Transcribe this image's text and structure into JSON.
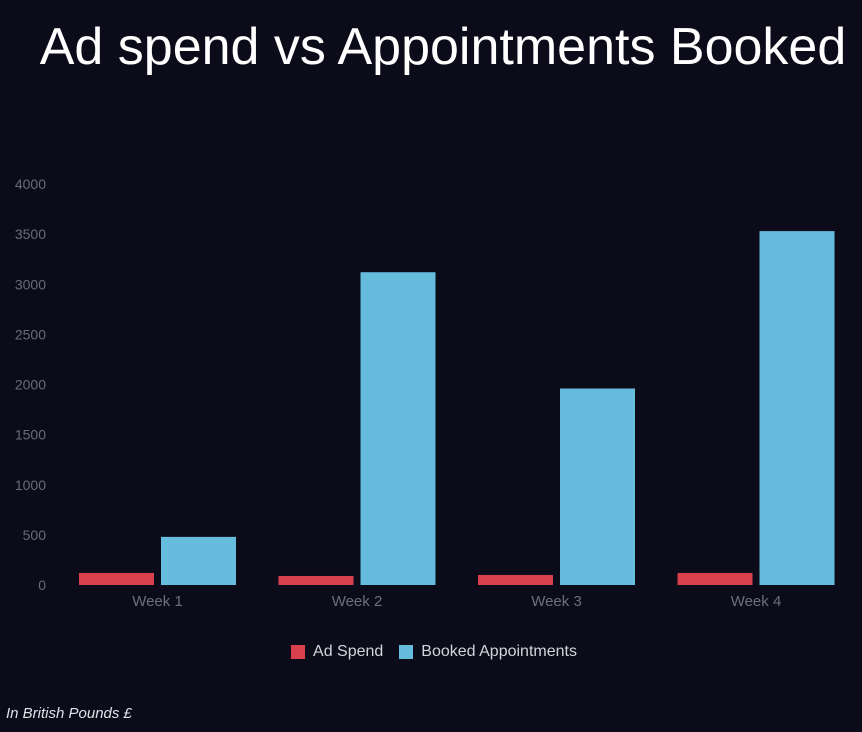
{
  "chart_data": {
    "type": "bar",
    "title": "Ad spend vs Appointments Booked",
    "categories": [
      "Week 1",
      "Week 2",
      "Week 3",
      "Week 4"
    ],
    "series": [
      {
        "name": "Ad Spend",
        "color": "#d93f4d",
        "values": [
          120,
          90,
          100,
          120
        ]
      },
      {
        "name": "Booked Appointments",
        "color": "#66bcdc",
        "values": [
          480,
          3120,
          1960,
          3530
        ]
      }
    ],
    "y_ticks": [
      "0",
      "500",
      "1000",
      "1500",
      "2000",
      "2500",
      "3000",
      "3500",
      "4000"
    ],
    "ylim": [
      0,
      4000
    ],
    "xlabel": "",
    "ylabel": "",
    "grid": false,
    "legend_position": "bottom"
  },
  "footnote": "In British Pounds £"
}
